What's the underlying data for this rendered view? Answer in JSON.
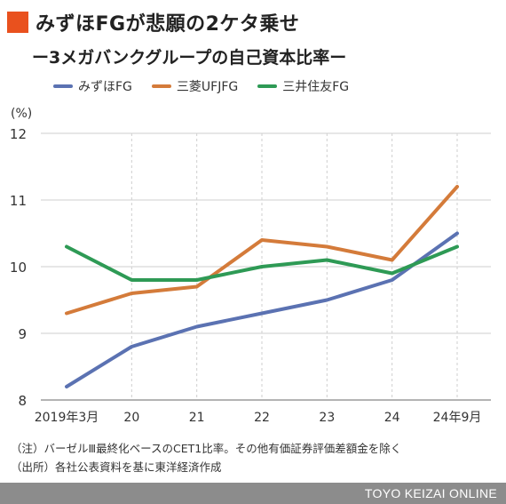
{
  "header": {
    "title": "みずほFGが悲願の2ケタ乗せ",
    "subtitle": "ー3メガバンクグループの自己資本比率ー",
    "accent_color": "#e9511e"
  },
  "chart_data": {
    "type": "line",
    "title": "みずほFGが悲願の2ケタ乗せ",
    "subtitle": "ー3メガバンクグループの自己資本比率ー",
    "unit_label": "(%)",
    "categories": [
      "2019年3月",
      "20",
      "21",
      "22",
      "23",
      "24",
      "24年9月"
    ],
    "ylim": [
      8,
      12
    ],
    "yticks": [
      "8",
      "9",
      "10",
      "11",
      "12"
    ],
    "grid": true,
    "legend_placement": "top",
    "series": [
      {
        "name": "みずほFG",
        "color": "#5b72b2",
        "values": [
          8.2,
          8.8,
          9.1,
          9.3,
          9.5,
          9.8,
          10.5
        ]
      },
      {
        "name": "三菱UFJFG",
        "color": "#d47b3a",
        "values": [
          9.3,
          9.6,
          9.7,
          10.4,
          10.3,
          10.1,
          11.2
        ]
      },
      {
        "name": "三井住友FG",
        "color": "#2e9a55",
        "values": [
          10.3,
          9.8,
          9.8,
          10.0,
          10.1,
          9.9,
          10.3
        ]
      }
    ]
  },
  "notes": {
    "note": "（注）バーゼルⅢ最終化ベースのCET1比率。その他有価証券評価差額金を除く",
    "source": "（出所）各社公表資料を基に東洋経済作成"
  },
  "footer": {
    "brand": "TOYO KEIZAI ONLINE"
  }
}
